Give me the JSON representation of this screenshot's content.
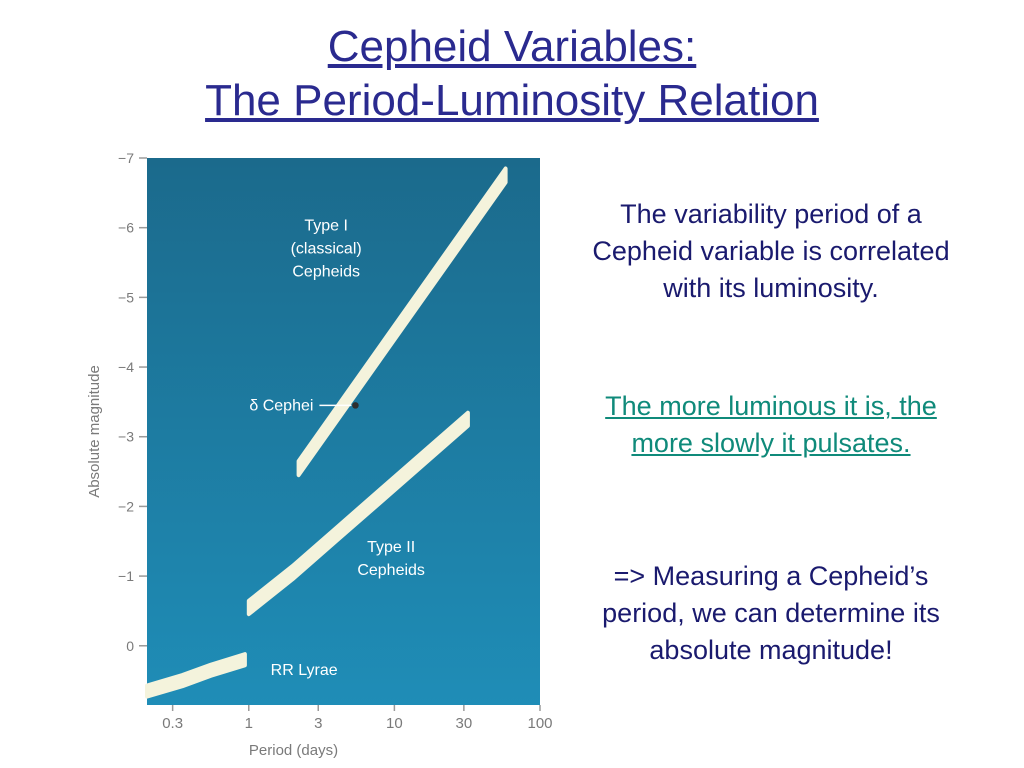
{
  "title": {
    "line1": "Cepheid Variables:",
    "line2": "The Period-Luminosity Relation"
  },
  "side_text": {
    "p1": "The variability period of a Cepheid variable is correlated with its luminosity.",
    "p2": "The more luminous it is, the more slowly it pulsates.",
    "p3_line1": "=> Measuring a Cepheid’s period, we can determine its absolute magnitude!"
  },
  "colors": {
    "title": "#2a2a8f",
    "text": "#1a1a6e",
    "emphasis": "#0f8a7a",
    "plot_top": "#1b6a8c",
    "plot_bottom": "#1f8db7",
    "band": "#f4f3dc",
    "axis_text": "#7a7a7a"
  },
  "chart_data": {
    "type": "line",
    "xlabel": "Period (days)",
    "ylabel": "Absolute magnitude",
    "x_scale": "log",
    "xlim": [
      0.2,
      100
    ],
    "ylim": [
      0.85,
      -7
    ],
    "x_ticks": [
      0.3,
      1,
      3,
      10,
      30,
      100
    ],
    "x_tick_labels": [
      "0.3",
      "1",
      "3",
      "10",
      "30",
      "100"
    ],
    "y_ticks": [
      0,
      -1,
      -2,
      -3,
      -4,
      -5,
      -6,
      -7
    ],
    "y_tick_labels": [
      "0",
      "−1",
      "−2",
      "−3",
      "−4",
      "−5",
      "−6",
      "−7"
    ],
    "series": [
      {
        "name": "Type I (classical) Cepheids",
        "label_lines": [
          "Type I",
          "(classical)",
          "Cepheids"
        ],
        "x": [
          2.2,
          58
        ],
        "y": [
          -2.55,
          -6.75
        ],
        "band": 0.2
      },
      {
        "name": "Type II Cepheids",
        "label_lines": [
          "Type II",
          "Cepheids"
        ],
        "x": [
          1.0,
          2.0,
          4.0,
          8.0,
          16.0,
          32.0
        ],
        "y": [
          -0.55,
          -1.05,
          -1.6,
          -2.15,
          -2.7,
          -3.25
        ],
        "band": 0.19
      },
      {
        "name": "RR Lyrae",
        "label_lines": [
          "RR Lyrae"
        ],
        "x": [
          0.2,
          0.35,
          0.55,
          0.94
        ],
        "y": [
          0.65,
          0.5,
          0.35,
          0.2
        ],
        "band": 0.16
      }
    ],
    "annotations": [
      {
        "text": "δ Cephei",
        "x": 5.4,
        "y": -3.45
      }
    ]
  }
}
